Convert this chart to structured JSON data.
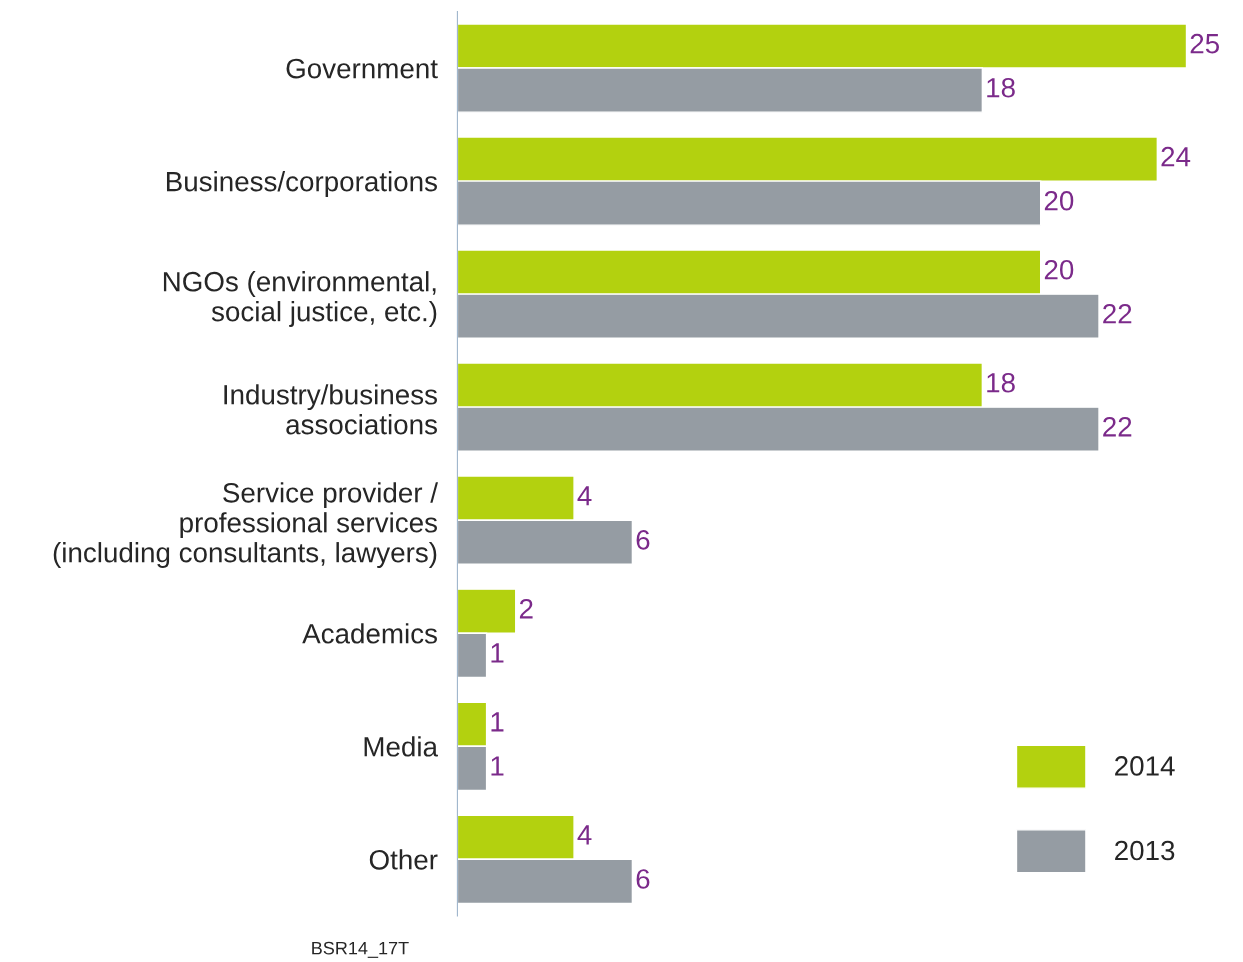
{
  "chart_data": {
    "type": "bar",
    "orientation": "horizontal",
    "categories": [
      "Government",
      "Business/corporations",
      "NGOs (environmental,\nsocial justice, etc.)",
      "Industry/business\nassociations",
      "Service provider /\nprofessional services\n(including consultants, lawyers)",
      "Academics",
      "Media",
      "Other"
    ],
    "series": [
      {
        "name": "2014",
        "color": "#b3d10f",
        "values": [
          25,
          24,
          20,
          18,
          4,
          2,
          1,
          4
        ]
      },
      {
        "name": "2013",
        "color": "#959ca3",
        "values": [
          18,
          20,
          22,
          22,
          6,
          1,
          1,
          6
        ]
      }
    ],
    "data_labels": true,
    "legend": "bottom right",
    "grid": false,
    "tick_labels": "y",
    "annotations": [
      "BSR14_17T"
    ]
  }
}
